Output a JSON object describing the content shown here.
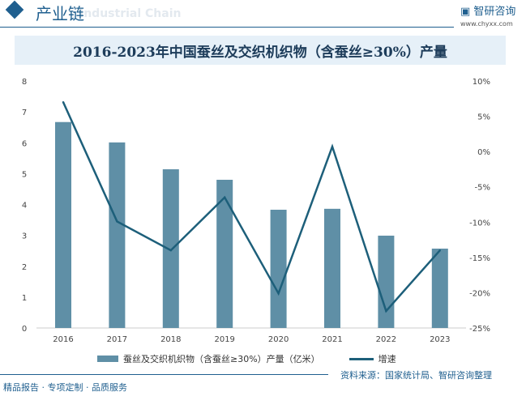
{
  "header": {
    "section": "产业链",
    "ghost": "Industrial Chain",
    "logo": "智研咨询",
    "url": "www.chyxx.com"
  },
  "chart_data": {
    "type": "bar+line",
    "title": "2016-2023年中国蚕丝及交织机织物（含蚕丝≥30%）产量",
    "categories": [
      "2016",
      "2017",
      "2018",
      "2019",
      "2020",
      "2021",
      "2022",
      "2023"
    ],
    "series": [
      {
        "name": "蚕丝及交织机织物（含蚕丝≥30%）产量（亿米）",
        "type": "bar",
        "axis": "left",
        "values": [
          6.67,
          6.01,
          5.14,
          4.8,
          3.83,
          3.86,
          2.99,
          2.57
        ]
      },
      {
        "name": "增速",
        "type": "line",
        "axis": "right",
        "values": [
          7.0,
          -9.9,
          -14.0,
          -6.5,
          -20.1,
          0.7,
          -22.6,
          -14.0
        ]
      }
    ],
    "ylim": [
      0,
      8
    ],
    "y_ticks": [
      "0",
      "1",
      "2",
      "3",
      "4",
      "5",
      "6",
      "7",
      "8"
    ],
    "y2lim": [
      -25,
      10
    ],
    "y2_ticks": [
      "-25%",
      "-20%",
      "-15%",
      "-10%",
      "-5%",
      "0%",
      "5%",
      "10%"
    ],
    "legend": "bottom",
    "grid": false,
    "colors": {
      "bar": "#5f8fa6",
      "line": "#1d5f7a"
    }
  },
  "source": "资料来源：国家统计局、智研咨询整理",
  "footer": "精品报告 · 专项定制 · 品质服务"
}
